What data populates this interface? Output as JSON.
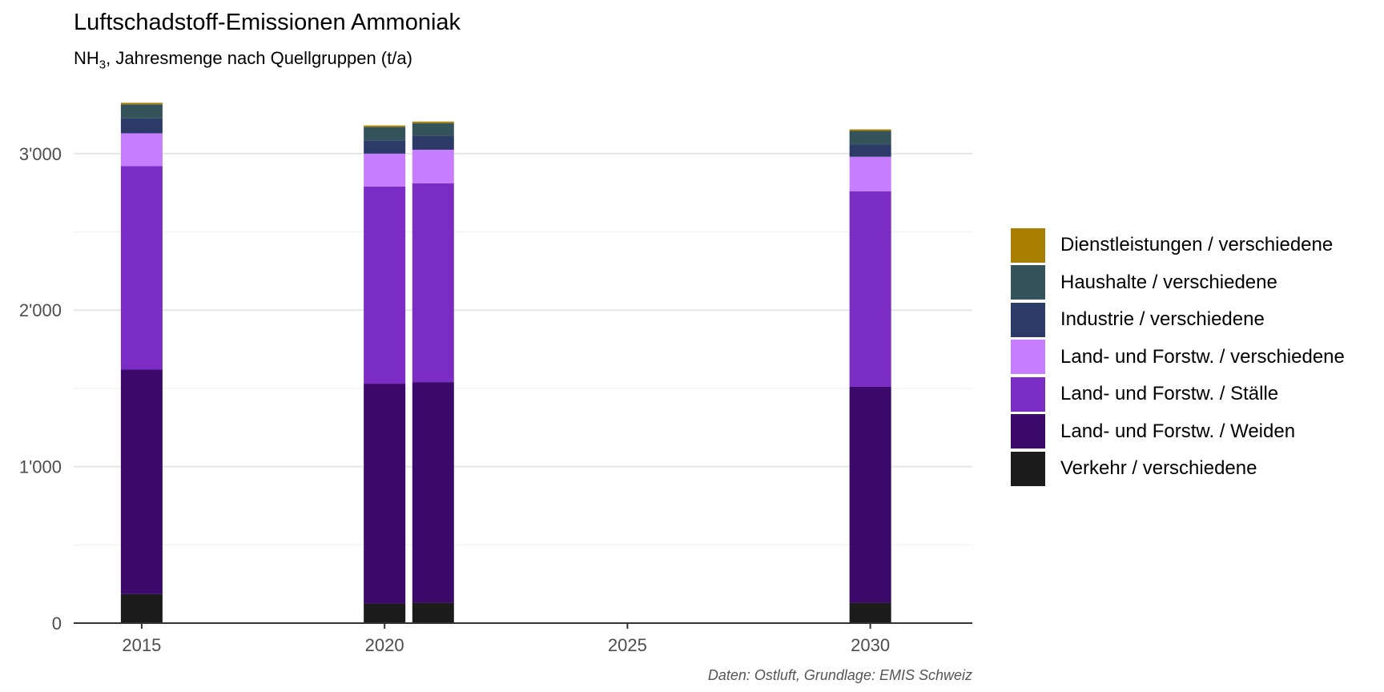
{
  "chart_data": {
    "type": "bar",
    "stacked": true,
    "title": "Luftschadstoff-Emissionen Ammoniak",
    "subtitle": {
      "prefix": "NH",
      "subscript": "3",
      "suffix": ", Jahresmenge nach Quellgruppen (t/a)"
    },
    "caption": "Daten: Ostluft, Grundlage: EMIS Schweiz",
    "xlabel": "",
    "ylabel": "",
    "xlim": [
      2013.6,
      2032.1
    ],
    "ylim": [
      0,
      3470
    ],
    "x_ticks": [
      {
        "value": 2015,
        "label": "2015"
      },
      {
        "value": 2020,
        "label": "2020"
      },
      {
        "value": 2025,
        "label": "2025"
      },
      {
        "value": 2030,
        "label": "2030"
      }
    ],
    "y_ticks": [
      {
        "value": 0,
        "label": "0"
      },
      {
        "value": 1000,
        "label": "1'000"
      },
      {
        "value": 2000,
        "label": "2'000"
      },
      {
        "value": 3000,
        "label": "3'000"
      }
    ],
    "y_minor_ticks": [
      500,
      1500,
      2500
    ],
    "grid": true,
    "legend_position": "right",
    "x": [
      2015,
      2020,
      2021,
      2030
    ],
    "series": [
      {
        "name": "Verkehr / verschiedene",
        "color": "#1b1b1b",
        "values": [
          185,
          125,
          130,
          130
        ]
      },
      {
        "name": "Land- und Forstw. / Weiden",
        "color": "#3b0a6b",
        "values": [
          1435,
          1405,
          1410,
          1380
        ]
      },
      {
        "name": "Land- und Forstw. / Ställe",
        "color": "#7b2cc4",
        "values": [
          1300,
          1260,
          1270,
          1250
        ]
      },
      {
        "name": "Land- und Forstw. / verschiedene",
        "color": "#c77dff",
        "values": [
          210,
          210,
          215,
          220
        ]
      },
      {
        "name": "Industrie / verschiedene",
        "color": "#2b3a67",
        "values": [
          95,
          85,
          90,
          80
        ]
      },
      {
        "name": "Haushalte / verschiedene",
        "color": "#34535a",
        "values": [
          90,
          85,
          80,
          85
        ]
      },
      {
        "name": "Dienstleistungen / verschiedene",
        "color": "#a87f00",
        "values": [
          10,
          10,
          10,
          10
        ]
      }
    ],
    "legend_order": [
      6,
      5,
      4,
      3,
      2,
      1,
      0
    ]
  }
}
